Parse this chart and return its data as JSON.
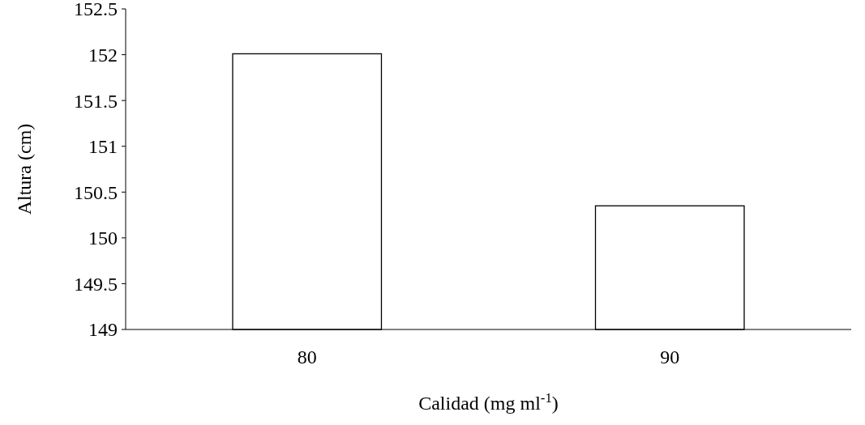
{
  "chart_data": {
    "type": "bar",
    "xlabel": "Calidad (mg ml$^{-1}$)",
    "ylabel": "Altura (cm)",
    "categories": [
      "80",
      "90"
    ],
    "values": [
      152.01,
      150.35
    ],
    "color": "#ffffff",
    "ylim": [
      149,
      152.5
    ],
    "yticks": [
      149,
      149.5,
      150,
      150.5,
      151,
      151.5,
      152,
      152.5
    ],
    "grid": false
  }
}
